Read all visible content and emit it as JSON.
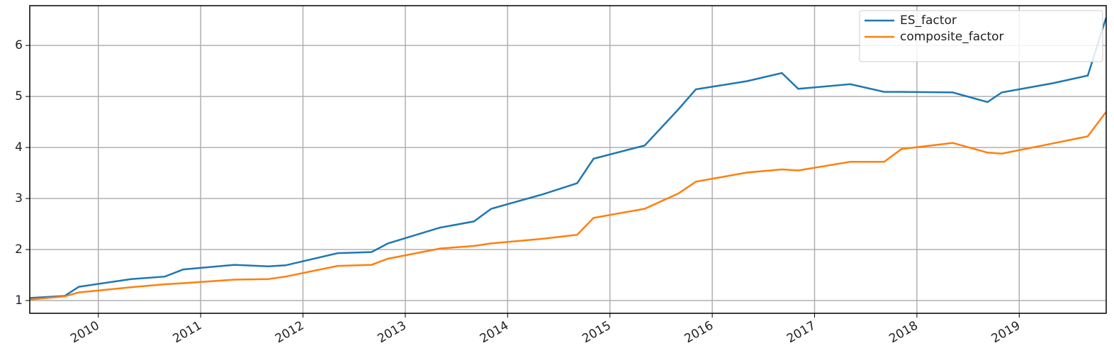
{
  "chart_data": {
    "type": "line",
    "x": [
      2009.33,
      2009.67,
      2009.81,
      2010.32,
      2010.65,
      2010.83,
      2011.33,
      2011.66,
      2011.83,
      2012.34,
      2012.67,
      2012.83,
      2013.34,
      2013.67,
      2013.84,
      2014.34,
      2014.68,
      2014.84,
      2015.34,
      2015.67,
      2015.84,
      2016.34,
      2016.68,
      2016.84,
      2017.35,
      2017.68,
      2017.85,
      2018.35,
      2018.69,
      2018.83,
      2019.33,
      2019.67,
      2019.85
    ],
    "series": [
      {
        "name": "ES_factor",
        "color": "#1f77b4",
        "values": [
          1.05,
          1.09,
          1.27,
          1.42,
          1.47,
          1.61,
          1.7,
          1.67,
          1.69,
          1.93,
          1.95,
          2.12,
          2.43,
          2.55,
          2.8,
          3.08,
          3.3,
          3.78,
          4.04,
          4.75,
          5.14,
          5.3,
          5.46,
          5.15,
          5.24,
          5.09,
          5.09,
          5.08,
          4.89,
          5.08,
          5.26,
          5.41,
          6.55
        ]
      },
      {
        "name": "composite_factor",
        "color": "#ff7f0e",
        "values": [
          1.02,
          1.08,
          1.16,
          1.26,
          1.32,
          1.34,
          1.41,
          1.42,
          1.47,
          1.68,
          1.7,
          1.82,
          2.02,
          2.07,
          2.12,
          2.21,
          2.29,
          2.62,
          2.8,
          3.1,
          3.33,
          3.51,
          3.57,
          3.55,
          3.72,
          3.72,
          3.97,
          4.09,
          3.9,
          3.88,
          4.08,
          4.22,
          4.7
        ]
      }
    ],
    "xlim": [
      2009.33,
      2019.85
    ],
    "xticks": [
      2010,
      2011,
      2012,
      2013,
      2014,
      2015,
      2016,
      2017,
      2018,
      2019
    ],
    "ylim": [
      0.75,
      6.78
    ],
    "yticks": [
      1,
      2,
      3,
      4,
      5,
      6
    ],
    "grid": true,
    "legend": "upper right"
  }
}
